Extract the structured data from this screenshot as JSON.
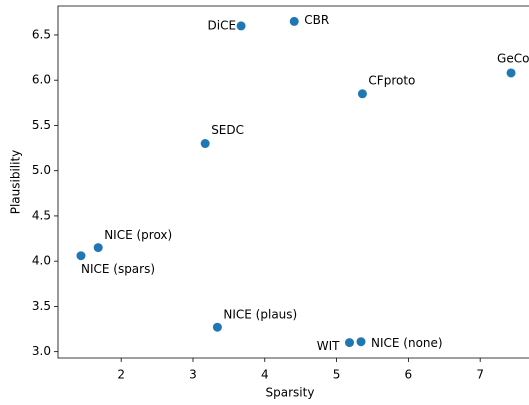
{
  "chart_data": {
    "type": "scatter",
    "xlabel": "Sparsity",
    "ylabel": "Plausibility",
    "color": "#1f77b4",
    "labels": [
      "DiCE",
      "CBR",
      "GeCo",
      "CFproto",
      "SEDC",
      "NICE (prox)",
      "NICE (spars)",
      "NICE (plaus)",
      "WIT",
      "NICE (none)"
    ],
    "x": [
      3.67,
      4.41,
      7.43,
      5.36,
      3.17,
      1.68,
      1.44,
      3.34,
      5.18,
      5.34
    ],
    "values": [
      6.6,
      6.65,
      6.08,
      5.85,
      5.3,
      4.15,
      4.06,
      3.27,
      3.1,
      3.11
    ],
    "xlim": [
      1.12,
      7.68
    ],
    "ylim": [
      2.93,
      6.82
    ],
    "xticks": [
      2,
      3,
      4,
      5,
      6,
      7
    ],
    "yticks": [
      {
        "value": 3,
        "label": "3.0"
      },
      3.5,
      {
        "value": 4,
        "label": "4.0"
      },
      4.5,
      {
        "value": 5,
        "label": "5.0"
      },
      5.5,
      {
        "value": 6,
        "label": "6.0"
      },
      6.5
    ]
  }
}
